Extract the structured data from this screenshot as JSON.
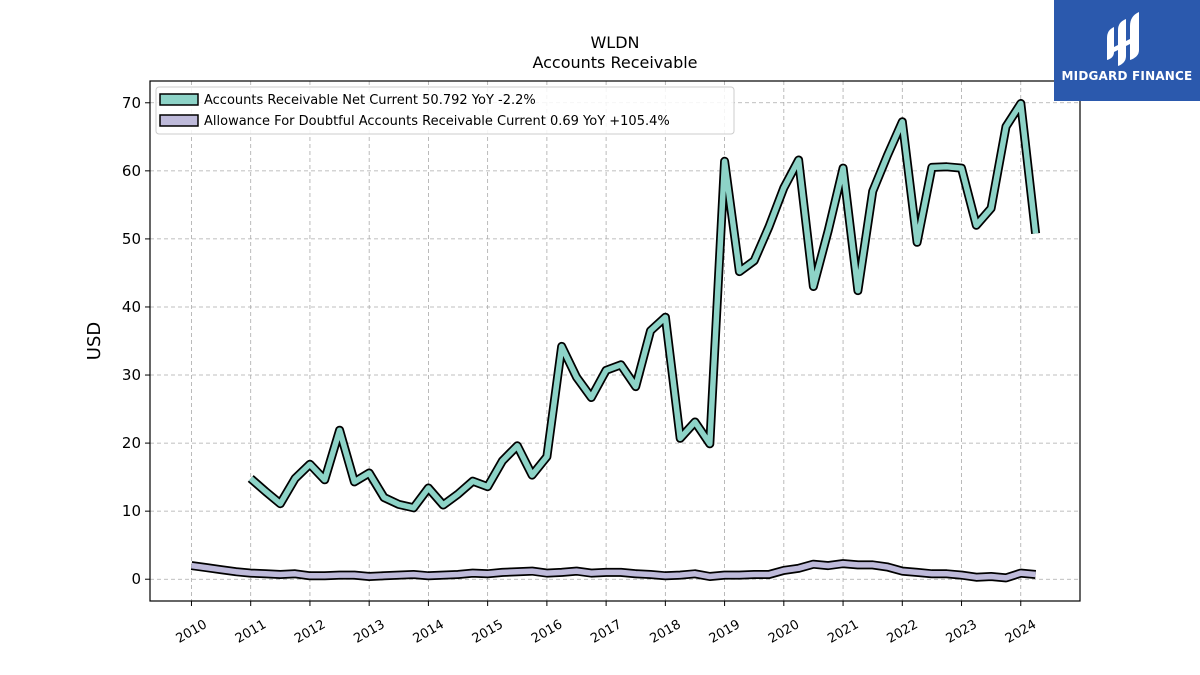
{
  "brand": {
    "name": "MIDGARD FINANCE",
    "color": "#2b59ad"
  },
  "chart_data": {
    "type": "line",
    "title": "WLDN",
    "subtitle": "Accounts Receivable",
    "ylabel": "USD",
    "xlabel": "",
    "xlim": [
      2009.3,
      2025.0
    ],
    "ylim": [
      -3.2,
      73.2
    ],
    "yticks": [
      0,
      10,
      20,
      30,
      40,
      50,
      60,
      70
    ],
    "xticks": [
      "2010",
      "2011",
      "2012",
      "2013",
      "2014",
      "2015",
      "2016",
      "2017",
      "2018",
      "2019",
      "2020",
      "2021",
      "2022",
      "2023",
      "2024"
    ],
    "grid": true,
    "legend_position": "top-left",
    "series": [
      {
        "name": "Accounts Receivable Net Current  50.792 YoY -2.2%",
        "color": "#8dd3c7",
        "x": [
          2011.0,
          2011.25,
          2011.5,
          2011.75,
          2012.0,
          2012.25,
          2012.5,
          2012.75,
          2013.0,
          2013.25,
          2013.5,
          2013.75,
          2014.0,
          2014.25,
          2014.5,
          2014.75,
          2015.0,
          2015.25,
          2015.5,
          2015.75,
          2016.0,
          2016.25,
          2016.5,
          2016.75,
          2017.0,
          2017.25,
          2017.5,
          2017.75,
          2018.0,
          2018.25,
          2018.5,
          2018.75,
          2019.0,
          2019.25,
          2019.5,
          2019.75,
          2020.0,
          2020.25,
          2020.5,
          2020.75,
          2021.0,
          2021.25,
          2021.5,
          2021.75,
          2022.0,
          2022.25,
          2022.5,
          2022.75,
          2023.0,
          2023.25,
          2023.5,
          2023.75,
          2024.0,
          2024.25
        ],
        "values": [
          14.8,
          12.9,
          11.1,
          14.8,
          16.9,
          14.6,
          21.9,
          14.3,
          15.6,
          12.0,
          11.0,
          10.5,
          13.4,
          10.9,
          12.5,
          14.4,
          13.6,
          17.4,
          19.6,
          15.3,
          18.0,
          34.2,
          29.7,
          26.7,
          30.7,
          31.5,
          28.3,
          36.5,
          38.5,
          20.7,
          23.1,
          19.9,
          61.4,
          45.2,
          46.8,
          51.8,
          57.5,
          61.6,
          43.0,
          51.2,
          60.4,
          42.4,
          57.0,
          62.3,
          67.2,
          49.5,
          60.5,
          60.6,
          60.4,
          52.0,
          54.5,
          66.5,
          69.9,
          50.8
        ]
      },
      {
        "name": "Allowance For Doubtful Accounts Receivable Current  0.69 YoY +105.4%",
        "color": "#bebada",
        "x": [
          2010.0,
          2010.25,
          2010.5,
          2010.75,
          2011.0,
          2011.25,
          2011.5,
          2011.75,
          2012.0,
          2012.25,
          2012.5,
          2012.75,
          2013.0,
          2013.25,
          2013.5,
          2013.75,
          2014.0,
          2014.25,
          2014.5,
          2014.75,
          2015.0,
          2015.25,
          2015.5,
          2015.75,
          2016.0,
          2016.25,
          2016.5,
          2016.75,
          2017.0,
          2017.25,
          2017.5,
          2017.75,
          2018.0,
          2018.25,
          2018.5,
          2018.75,
          2019.0,
          2019.25,
          2019.5,
          2019.75,
          2020.0,
          2020.25,
          2020.5,
          2020.75,
          2021.0,
          2021.25,
          2021.5,
          2021.75,
          2022.0,
          2022.25,
          2022.5,
          2022.75,
          2023.0,
          2023.25,
          2023.5,
          2023.75,
          2024.0,
          2024.25
        ],
        "values": [
          2.0,
          1.7,
          1.4,
          1.1,
          0.9,
          0.8,
          0.7,
          0.8,
          0.5,
          0.5,
          0.6,
          0.6,
          0.4,
          0.5,
          0.6,
          0.7,
          0.5,
          0.6,
          0.7,
          0.9,
          0.8,
          1.0,
          1.1,
          1.2,
          0.9,
          1.0,
          1.2,
          0.9,
          1.0,
          1.0,
          0.8,
          0.7,
          0.5,
          0.6,
          0.8,
          0.4,
          0.6,
          0.6,
          0.7,
          0.7,
          1.3,
          1.6,
          2.2,
          2.0,
          2.3,
          2.1,
          2.1,
          1.8,
          1.2,
          1.0,
          0.8,
          0.8,
          0.6,
          0.3,
          0.4,
          0.2,
          0.9,
          0.69
        ]
      }
    ]
  }
}
